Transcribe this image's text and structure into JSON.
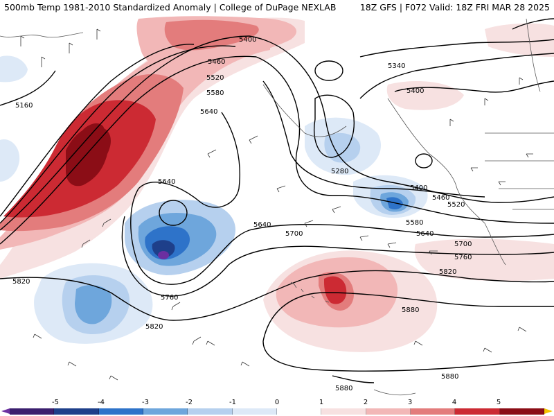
{
  "header": {
    "left_title": "500mb Temp 1981-2010 Standardized Anomaly | College of DuPage NEXLAB",
    "right_title": "18Z GFS | F072 Valid: 18Z FRI MAR 28 2025"
  },
  "contour_labels": [
    "5400",
    "5460",
    "5520",
    "5580",
    "5640",
    "5160",
    "5340",
    "5400",
    "5280",
    "5640",
    "5400",
    "5460",
    "5520",
    "5580",
    "5640",
    "5700",
    "5760",
    "5820",
    "5640",
    "5700",
    "5760",
    "5820",
    "5880",
    "5880",
    "5880"
  ],
  "colorbar": {
    "labels": [
      "-5",
      "-4",
      "-3",
      "-2",
      "-1",
      "0",
      "1",
      "2",
      "3",
      "4",
      "5"
    ],
    "colors": [
      "#3b1f6e",
      "#1e3f8a",
      "#2e73c9",
      "#6ea6dc",
      "#b6d0ee",
      "#dde9f7",
      "#ffffff",
      "#f7e1e1",
      "#f2b7b7",
      "#e37c7c",
      "#cc2a33",
      "#8b0d16"
    ],
    "under_color": "#6b2fa0",
    "over_color": "#f5c400"
  },
  "colors": {
    "strong_warm": "#cc2a33",
    "very_strong_warm": "#8b0d16",
    "mod_warm": "#e37c7c",
    "weak_warm": "#f2b7b7",
    "faint_warm": "#f7e1e1",
    "faint_cold": "#dde9f7",
    "weak_cold": "#b6d0ee",
    "mod_cold": "#6ea6dc",
    "strong_cold": "#2e73c9",
    "very_strong_cold": "#1e3f8a",
    "extreme_cold": "#6b2fa0"
  }
}
